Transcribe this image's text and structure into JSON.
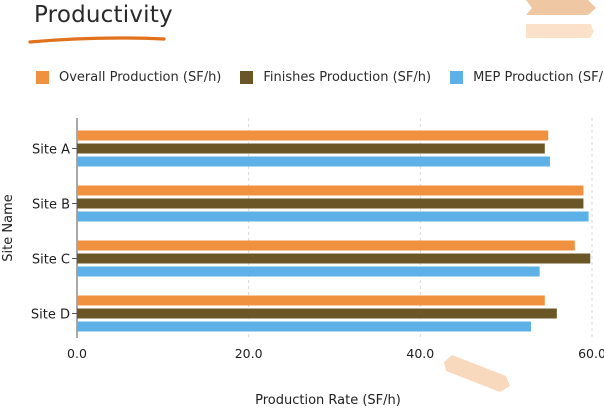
{
  "header": {
    "title": "Productivity"
  },
  "colors": {
    "overall": "#F0913F",
    "finishes": "#6B5628",
    "mep": "#5DB1E6",
    "accent": "#E2711D",
    "deco_light": "#F6D4B4",
    "deco_lighter": "#FBE4CF"
  },
  "chart_data": {
    "type": "bar",
    "orientation": "horizontal",
    "categories": [
      "Site A",
      "Site B",
      "Site C",
      "Site D"
    ],
    "series": [
      {
        "name": "Overall Production (SF/h)",
        "color_key": "overall",
        "values": [
          54.9,
          59.0,
          58.0,
          54.5
        ]
      },
      {
        "name": "Finishes Production (SF/h)",
        "color_key": "finishes",
        "values": [
          54.5,
          59.0,
          59.8,
          55.9
        ]
      },
      {
        "name": "MEP Production (SF/h)",
        "color_key": "mep",
        "values": [
          55.1,
          59.6,
          53.9,
          52.9
        ]
      }
    ],
    "xlabel": "Production Rate (SF/h)",
    "ylabel": "Site Name",
    "xlim": [
      0,
      60
    ],
    "xticks": [
      "0.0",
      "20.0",
      "40.0",
      "60.0"
    ],
    "xtick_values": [
      0,
      20,
      40,
      60
    ],
    "grid": "vertical dashed",
    "legend_position": "top"
  }
}
